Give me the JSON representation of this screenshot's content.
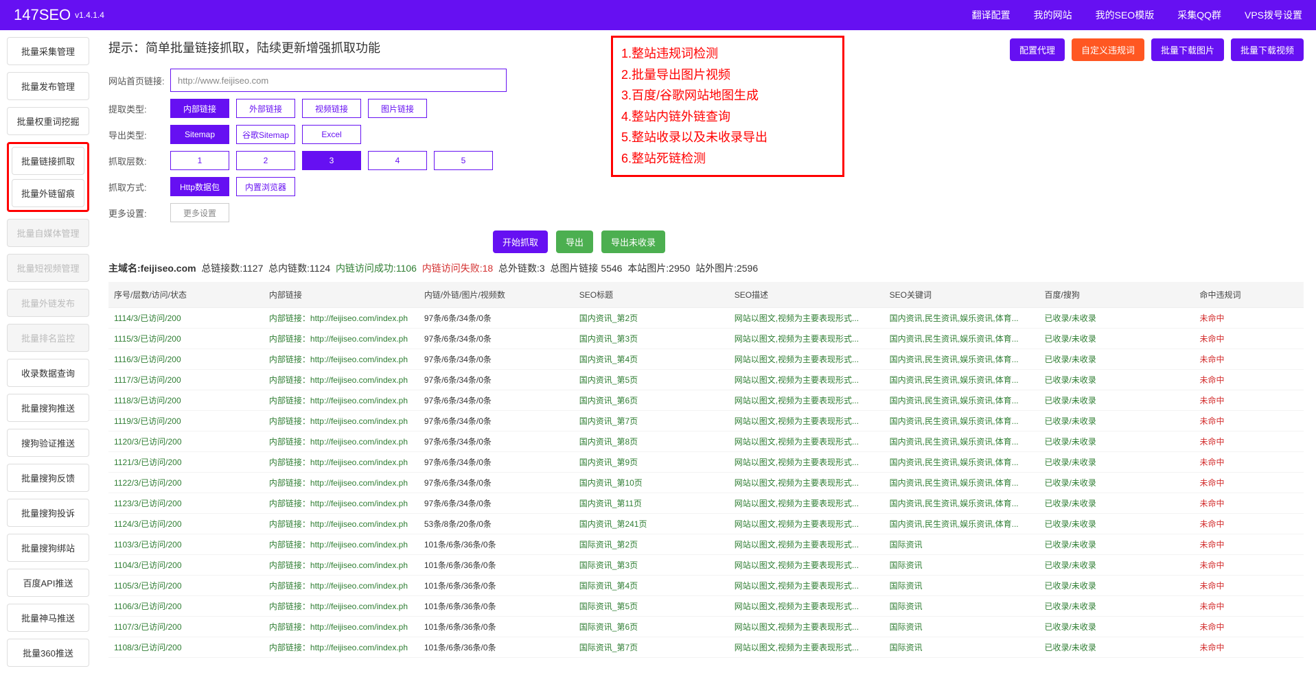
{
  "brand": "147SEO",
  "version": "v1.4.1.4",
  "topnav": [
    "翻译配置",
    "我的网站",
    "我的SEO模版",
    "采集QQ群",
    "VPS拨号设置"
  ],
  "sidebar_top": [
    "批量采集管理",
    "批量发布管理",
    "批量权重词挖掘"
  ],
  "sidebar_highlight": [
    "批量链接抓取",
    "批量外链留痕"
  ],
  "sidebar_disabled": [
    "批量自媒体管理",
    "批量短视频管理",
    "批量外链发布",
    "批量排名监控"
  ],
  "sidebar_rest": [
    "收录数据查询",
    "批量搜狗推送",
    "搜狗验证推送",
    "批量搜狗反馈",
    "批量搜狗投诉",
    "批量搜狗绑站",
    "百度API推送",
    "批量神马推送",
    "批量360推送"
  ],
  "action_buttons": [
    {
      "label": "配置代理",
      "cls": "btn-purple"
    },
    {
      "label": "自定义违规词",
      "cls": "btn-red"
    },
    {
      "label": "批量下载图片",
      "cls": "btn-purple"
    },
    {
      "label": "批量下载视频",
      "cls": "btn-purple"
    }
  ],
  "hint": "提示：简单批量链接抓取，陆续更新增强抓取功能",
  "form": {
    "url_label": "网站首页链接:",
    "url_value": "http://www.feijiseo.com",
    "rows": [
      {
        "label": "提取类型:",
        "opts": [
          "内部链接",
          "外部链接",
          "视频链接",
          "图片链接"
        ],
        "active": 0
      },
      {
        "label": "导出类型:",
        "opts": [
          "Sitemap",
          "谷歌Sitemap",
          "Excel"
        ],
        "active": 0
      },
      {
        "label": "抓取层数:",
        "opts": [
          "1",
          "2",
          "3",
          "4",
          "5"
        ],
        "active": 2
      },
      {
        "label": "抓取方式:",
        "opts": [
          "Http数据包",
          "内置浏览器"
        ],
        "active": 0
      },
      {
        "label": "更多设置:",
        "opts": [
          "更多设置"
        ],
        "active": -1,
        "plain": true
      }
    ]
  },
  "features": [
    "1.整站违规词检测",
    "2.批量导出图片视频",
    "3.百度/谷歌网站地图生成",
    "4.整站内链外链查询",
    "5.整站收录以及未收录导出",
    "6.整站死链检测"
  ],
  "center_buttons": [
    {
      "label": "开始抓取",
      "cls": "btn-purple"
    },
    {
      "label": "导出",
      "cls": "btn-green"
    },
    {
      "label": "导出未收录",
      "cls": "btn-green"
    }
  ],
  "stats": {
    "domain_label": "主域名:",
    "domain": "feijiseo.com",
    "total_links": "总链接数:1127",
    "total_inner": "总内链数:1124",
    "inner_ok": "内链访问成功:1106",
    "inner_fail": "内链访问失败:18",
    "total_outer": "总外链数:3",
    "total_img": "总图片链接 5546",
    "site_img": "本站图片:2950",
    "ext_img": "站外图片:2596"
  },
  "columns": [
    "序号/层数/访问/状态",
    "内部链接",
    "内链/外链/图片/视频数",
    "SEO标题",
    "SEO描述",
    "SEO关键词",
    "百度/搜狗",
    "命中违规词"
  ],
  "rows": [
    {
      "a": "1114/3/已访问/200",
      "b": "内部链接：http://feijiseo.com/index.ph",
      "c": "97条/6条/34条/0条",
      "d": "国内资讯_第2页",
      "e": "网站以图文,视频为主要表现形式...",
      "f": "国内资讯,民生资讯,娱乐资讯,体育...",
      "g": "已收录/未收录",
      "h": "未命中"
    },
    {
      "a": "1115/3/已访问/200",
      "b": "内部链接：http://feijiseo.com/index.ph",
      "c": "97条/6条/34条/0条",
      "d": "国内资讯_第3页",
      "e": "网站以图文,视频为主要表现形式...",
      "f": "国内资讯,民生资讯,娱乐资讯,体育...",
      "g": "已收录/未收录",
      "h": "未命中"
    },
    {
      "a": "1116/3/已访问/200",
      "b": "内部链接：http://feijiseo.com/index.ph",
      "c": "97条/6条/34条/0条",
      "d": "国内资讯_第4页",
      "e": "网站以图文,视频为主要表现形式...",
      "f": "国内资讯,民生资讯,娱乐资讯,体育...",
      "g": "已收录/未收录",
      "h": "未命中"
    },
    {
      "a": "1117/3/已访问/200",
      "b": "内部链接：http://feijiseo.com/index.ph",
      "c": "97条/6条/34条/0条",
      "d": "国内资讯_第5页",
      "e": "网站以图文,视频为主要表现形式...",
      "f": "国内资讯,民生资讯,娱乐资讯,体育...",
      "g": "已收录/未收录",
      "h": "未命中"
    },
    {
      "a": "1118/3/已访问/200",
      "b": "内部链接：http://feijiseo.com/index.ph",
      "c": "97条/6条/34条/0条",
      "d": "国内资讯_第6页",
      "e": "网站以图文,视频为主要表现形式...",
      "f": "国内资讯,民生资讯,娱乐资讯,体育...",
      "g": "已收录/未收录",
      "h": "未命中"
    },
    {
      "a": "1119/3/已访问/200",
      "b": "内部链接：http://feijiseo.com/index.ph",
      "c": "97条/6条/34条/0条",
      "d": "国内资讯_第7页",
      "e": "网站以图文,视频为主要表现形式...",
      "f": "国内资讯,民生资讯,娱乐资讯,体育...",
      "g": "已收录/未收录",
      "h": "未命中"
    },
    {
      "a": "1120/3/已访问/200",
      "b": "内部链接：http://feijiseo.com/index.ph",
      "c": "97条/6条/34条/0条",
      "d": "国内资讯_第8页",
      "e": "网站以图文,视频为主要表现形式...",
      "f": "国内资讯,民生资讯,娱乐资讯,体育...",
      "g": "已收录/未收录",
      "h": "未命中"
    },
    {
      "a": "1121/3/已访问/200",
      "b": "内部链接：http://feijiseo.com/index.ph",
      "c": "97条/6条/34条/0条",
      "d": "国内资讯_第9页",
      "e": "网站以图文,视频为主要表现形式...",
      "f": "国内资讯,民生资讯,娱乐资讯,体育...",
      "g": "已收录/未收录",
      "h": "未命中"
    },
    {
      "a": "1122/3/已访问/200",
      "b": "内部链接：http://feijiseo.com/index.ph",
      "c": "97条/6条/34条/0条",
      "d": "国内资讯_第10页",
      "e": "网站以图文,视频为主要表现形式...",
      "f": "国内资讯,民生资讯,娱乐资讯,体育...",
      "g": "已收录/未收录",
      "h": "未命中"
    },
    {
      "a": "1123/3/已访问/200",
      "b": "内部链接：http://feijiseo.com/index.ph",
      "c": "97条/6条/34条/0条",
      "d": "国内资讯_第11页",
      "e": "网站以图文,视频为主要表现形式...",
      "f": "国内资讯,民生资讯,娱乐资讯,体育...",
      "g": "已收录/未收录",
      "h": "未命中"
    },
    {
      "a": "1124/3/已访问/200",
      "b": "内部链接：http://feijiseo.com/index.ph",
      "c": "53条/8条/20条/0条",
      "d": "国内资讯_第241页",
      "e": "网站以图文,视频为主要表现形式...",
      "f": "国内资讯,民生资讯,娱乐资讯,体育...",
      "g": "已收录/未收录",
      "h": "未命中"
    },
    {
      "a": "1103/3/已访问/200",
      "b": "内部链接：http://feijiseo.com/index.ph",
      "c": "101条/6条/36条/0条",
      "d": "国际资讯_第2页",
      "e": "网站以图文,视频为主要表现形式...",
      "f": "国际资讯",
      "g": "已收录/未收录",
      "h": "未命中"
    },
    {
      "a": "1104/3/已访问/200",
      "b": "内部链接：http://feijiseo.com/index.ph",
      "c": "101条/6条/36条/0条",
      "d": "国际资讯_第3页",
      "e": "网站以图文,视频为主要表现形式...",
      "f": "国际资讯",
      "g": "已收录/未收录",
      "h": "未命中"
    },
    {
      "a": "1105/3/已访问/200",
      "b": "内部链接：http://feijiseo.com/index.ph",
      "c": "101条/6条/36条/0条",
      "d": "国际资讯_第4页",
      "e": "网站以图文,视频为主要表现形式...",
      "f": "国际资讯",
      "g": "已收录/未收录",
      "h": "未命中"
    },
    {
      "a": "1106/3/已访问/200",
      "b": "内部链接：http://feijiseo.com/index.ph",
      "c": "101条/6条/36条/0条",
      "d": "国际资讯_第5页",
      "e": "网站以图文,视频为主要表现形式...",
      "f": "国际资讯",
      "g": "已收录/未收录",
      "h": "未命中"
    },
    {
      "a": "1107/3/已访问/200",
      "b": "内部链接：http://feijiseo.com/index.ph",
      "c": "101条/6条/36条/0条",
      "d": "国际资讯_第6页",
      "e": "网站以图文,视频为主要表现形式...",
      "f": "国际资讯",
      "g": "已收录/未收录",
      "h": "未命中"
    },
    {
      "a": "1108/3/已访问/200",
      "b": "内部链接：http://feijiseo.com/index.ph",
      "c": "101条/6条/36条/0条",
      "d": "国际资讯_第7页",
      "e": "网站以图文,视频为主要表现形式...",
      "f": "国际资讯",
      "g": "已收录/未收录",
      "h": "未命中"
    }
  ]
}
